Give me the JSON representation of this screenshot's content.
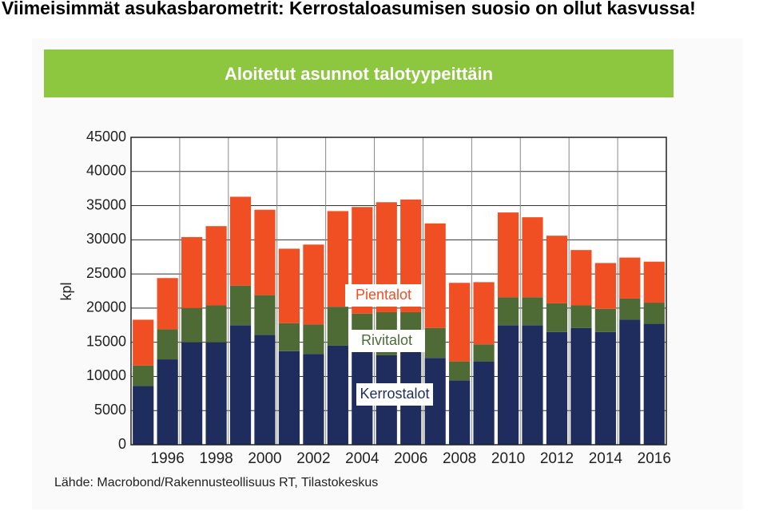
{
  "header": {
    "title": "Viimeisimmät asukasbarometrit: Kerrostaloasumisen suosio on ollut kasvussa!"
  },
  "chart_data": {
    "type": "stacked-bar",
    "title": "Aloitetut asunnot talotyypeittäin",
    "y_label": "kpl",
    "source": "Lähde: Macrobond/Rakennusteollisuus RT, Tilastokeskus",
    "categories": [
      null,
      "1996",
      null,
      "1998",
      null,
      "2000",
      null,
      "2002",
      null,
      "2004",
      null,
      "2006",
      null,
      "2008",
      null,
      "2010",
      null,
      "2012",
      null,
      "2014",
      null,
      "2016"
    ],
    "series": [
      {
        "name": "Kerrostalot",
        "color": "#1f2d5e",
        "values": [
          8600,
          12500,
          15000,
          15000,
          17500,
          16100,
          13700,
          13300,
          14500,
          13700,
          13100,
          13700,
          12700,
          9400,
          12200,
          17500,
          17500,
          16500,
          17100,
          16500,
          18300,
          17700
        ]
      },
      {
        "name": "Rivitalot",
        "color": "#4e6b35",
        "values": [
          3000,
          4400,
          5000,
          5400,
          5800,
          5800,
          4100,
          4300,
          5700,
          5500,
          6300,
          5700,
          4400,
          2800,
          2500,
          4100,
          4100,
          4200,
          3300,
          3400,
          3100,
          3100
        ]
      },
      {
        "name": "Pientalot",
        "color": "#f04e23",
        "values": [
          6700,
          7500,
          10400,
          11600,
          13000,
          12500,
          10900,
          11700,
          14000,
          15600,
          16100,
          16500,
          15300,
          11500,
          9100,
          12400,
          11700,
          9900,
          8100,
          6700,
          6000,
          6000
        ]
      }
    ],
    "ylim": [
      0,
      45000
    ],
    "yticks": [
      0,
      5000,
      10000,
      15000,
      20000,
      25000,
      30000,
      35000,
      40000,
      45000
    ],
    "grid": true
  }
}
